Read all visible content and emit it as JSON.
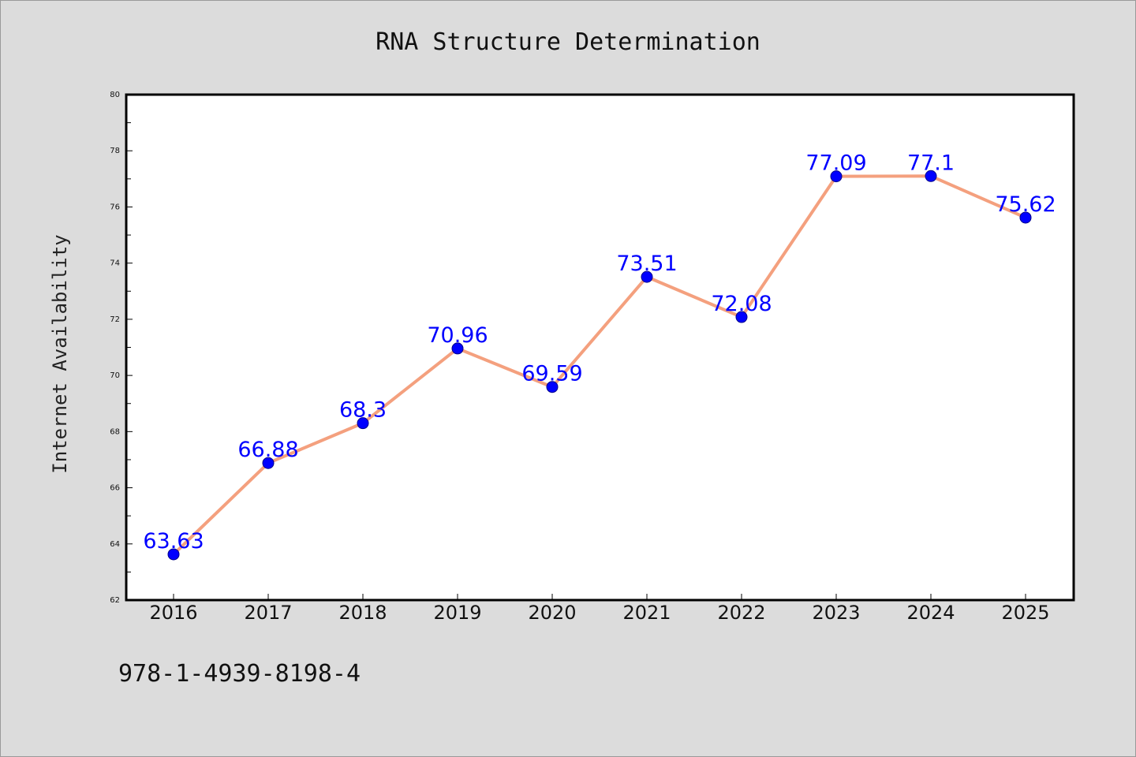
{
  "colors": {
    "background": "#dcdcdc",
    "plot_background": "#ffffff",
    "line": "#f4a07e",
    "marker_fill": "#0000ff",
    "marker_edge": "#00008b",
    "data_label": "#0000ff",
    "axis": "#000000"
  },
  "footer": {
    "isbn": "978-1-4939-8198-4"
  },
  "chart_data": {
    "type": "line",
    "title": "RNA Structure Determination",
    "xlabel": "",
    "ylabel": "Internet Availability",
    "categories": [
      "2016",
      "2017",
      "2018",
      "2019",
      "2020",
      "2021",
      "2022",
      "2023",
      "2024",
      "2025"
    ],
    "series": [
      {
        "values": [
          63.63,
          66.88,
          68.3,
          70.96,
          69.59,
          73.51,
          72.08,
          77.09,
          77.1,
          75.62
        ],
        "labels": [
          "63.63",
          "66.88",
          "68.3",
          "70.96",
          "69.59",
          "73.51",
          "72.08",
          "77.09",
          "77.1",
          "75.62"
        ]
      }
    ],
    "ylim": [
      62,
      80
    ],
    "yticks": [
      "62",
      "64",
      "66",
      "68",
      "70",
      "72",
      "74",
      "76",
      "78",
      "80"
    ],
    "grid": false,
    "legend": "none"
  }
}
